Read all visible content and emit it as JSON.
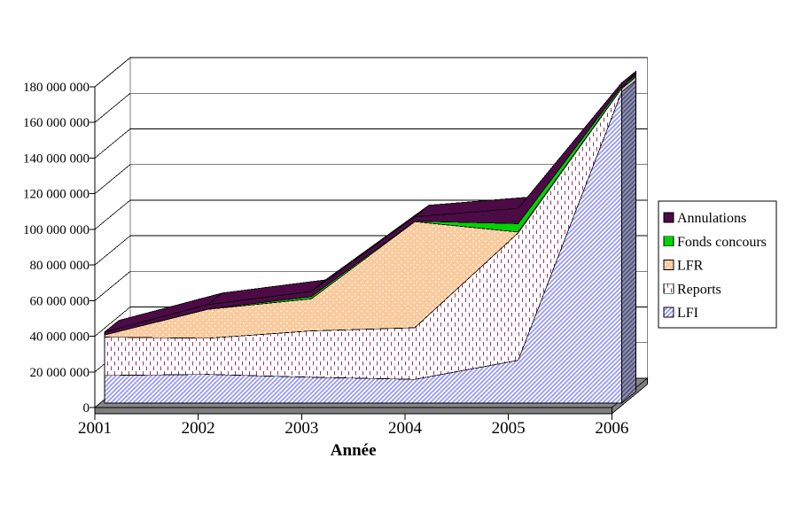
{
  "chart_data": {
    "type": "area",
    "variant": "3d-stacked-area",
    "title": "",
    "xlabel": "Année",
    "ylabel": "",
    "categories": [
      "2001",
      "2002",
      "2003",
      "2004",
      "2005",
      "2006"
    ],
    "series": [
      {
        "name": "LFI",
        "values": [
          15500000,
          16100000,
          14500000,
          13300000,
          24000000,
          174500000
        ],
        "fill": "pattern-diagonal-hatch",
        "pattern_color": "#9999FF",
        "pattern_bg": "#FFFFFF"
      },
      {
        "name": "Reports",
        "values": [
          21500000,
          20300000,
          26000000,
          29000000,
          71500000,
          2000000
        ],
        "fill": "pattern-dash-grid",
        "pattern_color": "#993366",
        "pattern_bg": "#FFFFFF"
      },
      {
        "name": "LFR",
        "values": [
          1200000,
          16200000,
          18000000,
          59500000,
          500000,
          200000
        ],
        "fill": "pattern-dots",
        "pattern_color": "#FFFFFF",
        "pattern_bg": "#FBCA9C"
      },
      {
        "name": "Fonds concours",
        "values": [
          0,
          200000,
          1200000,
          300000,
          4700000,
          1000000
        ],
        "fill": "solid",
        "pattern_color": "#00D400",
        "pattern_bg": "#00D400"
      },
      {
        "name": "Annulations",
        "values": [
          1700000,
          2500000,
          3000000,
          2500000,
          8600000,
          2000000
        ],
        "fill": "solid",
        "pattern_color": "#4C0B46",
        "pattern_bg": "#4C0B46"
      }
    ],
    "legend_order": [
      "Annulations",
      "Fonds concours",
      "LFR",
      "Reports",
      "LFI"
    ],
    "legend_position": "right",
    "ylim": [
      0,
      180000000
    ],
    "ytick_step": 20000000,
    "ytick_labels": [
      "0",
      "20 000 000",
      "40 000 000",
      "60 000 000",
      "80 000 000",
      "100 000 000",
      "120 000 000",
      "140 000 000",
      "160 000 000",
      "180 000 000"
    ],
    "grid": true,
    "colors": {
      "floor_top": "#868686",
      "floor_front": "#7D7D7D",
      "side_face_bg": "#9292AE",
      "side_face_line": "#55557E",
      "wall_border": "#808080",
      "gridline": "#000000",
      "outline": "#000000"
    }
  }
}
